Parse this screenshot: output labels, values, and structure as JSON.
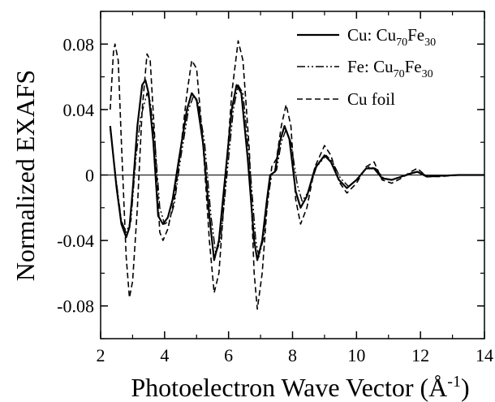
{
  "chart_data": {
    "type": "line",
    "title": "",
    "xlabel": "Photoelectron Wave Vector (Å",
    "xlabel_sup": "-1",
    "xlabel_close": ")",
    "ylabel": "Normalized EXAFS",
    "xlim": [
      2,
      14
    ],
    "ylim": [
      -0.1,
      0.1
    ],
    "x_ticks": [
      2,
      4,
      6,
      8,
      10,
      12,
      14
    ],
    "x_tick_labels": [
      "2",
      "4",
      "6",
      "8",
      "10",
      "12",
      "14"
    ],
    "y_ticks": [
      0.08,
      0.04,
      0,
      -0.04,
      -0.08
    ],
    "y_tick_labels": [
      "0.08",
      "0.04",
      "0",
      "-0.04",
      "-0.08"
    ],
    "zero_line": true,
    "grid": false,
    "legend_position": "top-right",
    "series": [
      {
        "legend": {
          "prefix": "Cu: Cu",
          "sub1": "70",
          "mid": "Fe",
          "sub2": "30"
        },
        "style": "solid",
        "points": [
          [
            2.3,
            0.03
          ],
          [
            2.5,
            -0.008
          ],
          [
            2.65,
            -0.03
          ],
          [
            2.8,
            -0.038
          ],
          [
            2.9,
            -0.032
          ],
          [
            3.0,
            -0.01
          ],
          [
            3.15,
            0.03
          ],
          [
            3.3,
            0.055
          ],
          [
            3.4,
            0.058
          ],
          [
            3.5,
            0.05
          ],
          [
            3.65,
            0.02
          ],
          [
            3.8,
            -0.025
          ],
          [
            3.95,
            -0.03
          ],
          [
            4.1,
            -0.026
          ],
          [
            4.25,
            -0.015
          ],
          [
            4.45,
            0.01
          ],
          [
            4.7,
            0.04
          ],
          [
            4.85,
            0.05
          ],
          [
            5.0,
            0.046
          ],
          [
            5.2,
            0.02
          ],
          [
            5.4,
            -0.025
          ],
          [
            5.55,
            -0.052
          ],
          [
            5.7,
            -0.04
          ],
          [
            5.9,
            0.0
          ],
          [
            6.1,
            0.04
          ],
          [
            6.25,
            0.055
          ],
          [
            6.4,
            0.05
          ],
          [
            6.6,
            0.01
          ],
          [
            6.8,
            -0.04
          ],
          [
            6.9,
            -0.052
          ],
          [
            7.05,
            -0.04
          ],
          [
            7.2,
            -0.015
          ],
          [
            7.3,
            0.0
          ],
          [
            7.45,
            0.002
          ],
          [
            7.6,
            0.02
          ],
          [
            7.75,
            0.03
          ],
          [
            7.9,
            0.022
          ],
          [
            8.1,
            -0.01
          ],
          [
            8.25,
            -0.02
          ],
          [
            8.45,
            -0.013
          ],
          [
            8.7,
            0.004
          ],
          [
            9.0,
            0.012
          ],
          [
            9.2,
            0.008
          ],
          [
            9.45,
            -0.003
          ],
          [
            9.7,
            -0.008
          ],
          [
            10.0,
            -0.003
          ],
          [
            10.3,
            0.004
          ],
          [
            10.55,
            0.004
          ],
          [
            10.8,
            -0.002
          ],
          [
            11.1,
            -0.003
          ],
          [
            11.4,
            -0.001
          ],
          [
            11.7,
            0.001
          ],
          [
            11.9,
            0.002
          ],
          [
            12.2,
            -0.001
          ],
          [
            12.6,
            -0.0005
          ],
          [
            13.2,
            0.0
          ],
          [
            14.0,
            0.0
          ]
        ]
      },
      {
        "legend": {
          "prefix": "Fe: Cu",
          "sub1": "70",
          "mid": "Fe",
          "sub2": "30"
        },
        "style": "dash-dot-dot",
        "points": [
          [
            2.3,
            0.028
          ],
          [
            2.5,
            -0.005
          ],
          [
            2.65,
            -0.028
          ],
          [
            2.8,
            -0.035
          ],
          [
            2.95,
            -0.028
          ],
          [
            3.1,
            0.01
          ],
          [
            3.25,
            0.035
          ],
          [
            3.45,
            0.05
          ],
          [
            3.55,
            0.045
          ],
          [
            3.7,
            0.02
          ],
          [
            3.85,
            -0.02
          ],
          [
            4.0,
            -0.03
          ],
          [
            4.15,
            -0.028
          ],
          [
            4.3,
            -0.018
          ],
          [
            4.5,
            0.01
          ],
          [
            4.75,
            0.04
          ],
          [
            4.9,
            0.048
          ],
          [
            5.05,
            0.044
          ],
          [
            5.25,
            0.02
          ],
          [
            5.45,
            -0.025
          ],
          [
            5.6,
            -0.048
          ],
          [
            5.75,
            -0.04
          ],
          [
            5.95,
            0.0
          ],
          [
            6.15,
            0.04
          ],
          [
            6.3,
            0.055
          ],
          [
            6.45,
            0.05
          ],
          [
            6.65,
            0.01
          ],
          [
            6.85,
            -0.04
          ],
          [
            6.95,
            -0.05
          ],
          [
            7.1,
            -0.038
          ],
          [
            7.25,
            -0.012
          ],
          [
            7.35,
            0.0
          ],
          [
            7.5,
            0.003
          ],
          [
            7.65,
            0.02
          ],
          [
            7.8,
            0.028
          ],
          [
            7.95,
            0.02
          ],
          [
            8.15,
            -0.006
          ],
          [
            8.3,
            -0.016
          ],
          [
            8.5,
            -0.01
          ],
          [
            8.75,
            0.005
          ],
          [
            9.05,
            0.012
          ],
          [
            9.25,
            0.008
          ],
          [
            9.5,
            -0.002
          ],
          [
            9.75,
            -0.007
          ],
          [
            10.05,
            -0.002
          ],
          [
            10.35,
            0.005
          ],
          [
            10.6,
            0.004
          ],
          [
            10.85,
            -0.002
          ],
          [
            11.15,
            -0.003
          ],
          [
            11.45,
            -0.001
          ],
          [
            11.75,
            0.001
          ],
          [
            11.95,
            0.002
          ],
          [
            12.25,
            -0.001
          ],
          [
            12.65,
            -0.0005
          ],
          [
            13.3,
            0.0
          ],
          [
            14.0,
            0.0
          ]
        ]
      },
      {
        "legend": {
          "prefix": "Cu foil",
          "sub1": "",
          "mid": "",
          "sub2": ""
        },
        "style": "dashed",
        "points": [
          [
            2.3,
            0.04
          ],
          [
            2.4,
            0.075
          ],
          [
            2.45,
            0.08
          ],
          [
            2.55,
            0.07
          ],
          [
            2.65,
            0.02
          ],
          [
            2.8,
            -0.05
          ],
          [
            2.9,
            -0.075
          ],
          [
            3.0,
            -0.065
          ],
          [
            3.15,
            -0.02
          ],
          [
            3.3,
            0.04
          ],
          [
            3.45,
            0.074
          ],
          [
            3.55,
            0.07
          ],
          [
            3.7,
            0.02
          ],
          [
            3.85,
            -0.035
          ],
          [
            3.95,
            -0.04
          ],
          [
            4.1,
            -0.033
          ],
          [
            4.3,
            -0.015
          ],
          [
            4.5,
            0.015
          ],
          [
            4.7,
            0.05
          ],
          [
            4.85,
            0.07
          ],
          [
            5.0,
            0.065
          ],
          [
            5.2,
            0.02
          ],
          [
            5.4,
            -0.04
          ],
          [
            5.55,
            -0.072
          ],
          [
            5.7,
            -0.06
          ],
          [
            5.9,
            -0.005
          ],
          [
            6.1,
            0.05
          ],
          [
            6.3,
            0.082
          ],
          [
            6.45,
            0.07
          ],
          [
            6.65,
            0.015
          ],
          [
            6.8,
            -0.06
          ],
          [
            6.9,
            -0.082
          ],
          [
            7.05,
            -0.06
          ],
          [
            7.2,
            -0.02
          ],
          [
            7.35,
            0.005
          ],
          [
            7.5,
            0.01
          ],
          [
            7.65,
            0.03
          ],
          [
            7.8,
            0.043
          ],
          [
            7.95,
            0.03
          ],
          [
            8.1,
            -0.015
          ],
          [
            8.25,
            -0.03
          ],
          [
            8.45,
            -0.02
          ],
          [
            8.7,
            0.005
          ],
          [
            9.0,
            0.018
          ],
          [
            9.2,
            0.012
          ],
          [
            9.45,
            -0.004
          ],
          [
            9.7,
            -0.011
          ],
          [
            10.0,
            -0.005
          ],
          [
            10.3,
            0.005
          ],
          [
            10.55,
            0.008
          ],
          [
            10.8,
            -0.003
          ],
          [
            11.1,
            -0.005
          ],
          [
            11.4,
            -0.002
          ],
          [
            11.7,
            0.002
          ],
          [
            11.9,
            0.004
          ],
          [
            12.2,
            -0.001
          ],
          [
            12.6,
            -0.001
          ],
          [
            13.2,
            0.0
          ],
          [
            14.0,
            0.0
          ]
        ]
      }
    ]
  }
}
